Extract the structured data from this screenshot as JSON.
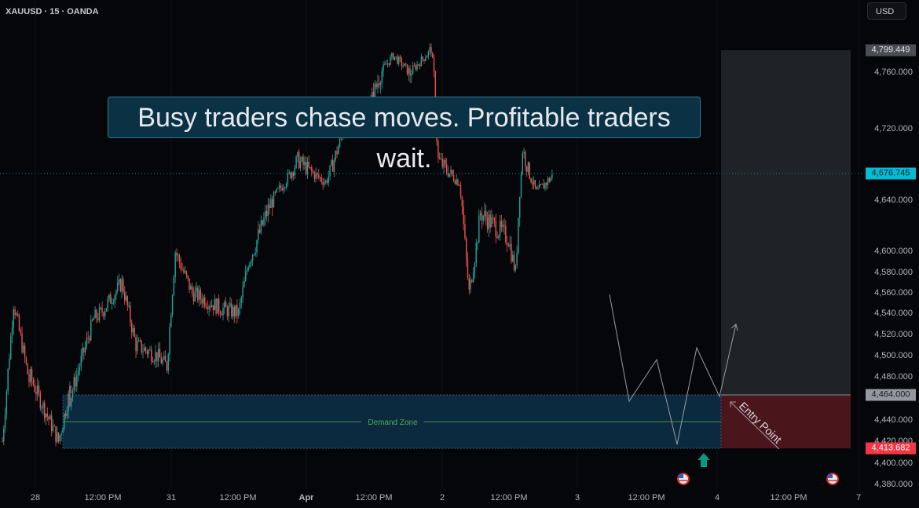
{
  "header": {
    "symbol": "XAUUSD · 15 · OANDA",
    "currency_button": "USD"
  },
  "banner": {
    "text": "Busy traders chase moves. Profitable traders wait."
  },
  "annotations": {
    "demand_zone": "Demand Zone",
    "entry_point": "Entry Point"
  },
  "colors": {
    "up": "#26a69a",
    "down": "#ef5350",
    "last_price": "#00bcd4",
    "zone": "#0b2a40",
    "stop": "#4a161b",
    "target": "#1f2226"
  },
  "price_axis": {
    "ticks": [
      "4,760.000",
      "4,720.000",
      "4,640.000",
      "4,600.000",
      "4,580.000",
      "4,560.000",
      "4,540.000",
      "4,520.000",
      "4,500.000",
      "4,480.000",
      "4,440.000",
      "4,420.000",
      "4,400.000",
      "4,380.000"
    ],
    "target_label": "4,799.449",
    "last_price_label": "4,676.745",
    "entry_label": "4,464.000",
    "stop_label": "4,413.682"
  },
  "time_axis": {
    "ticks": [
      "28",
      "12:00 PM",
      "31",
      "12:00 PM",
      "Apr",
      "12:00 PM",
      "2",
      "12:00 PM",
      "3",
      "12:00 PM",
      "4",
      "12:00 PM",
      "7"
    ]
  },
  "chart_data": {
    "type": "candlestick",
    "price_waypoints": [
      [
        0,
        4420
      ],
      [
        8,
        4550
      ],
      [
        20,
        4470
      ],
      [
        20,
        4480
      ],
      [
        40,
        4420
      ],
      [
        50,
        4480
      ],
      [
        48,
        4460
      ],
      [
        65,
        4535
      ],
      [
        70,
        4540
      ],
      [
        85,
        4570
      ],
      [
        95,
        4510
      ],
      [
        110,
        4500
      ],
      [
        117,
        4490
      ],
      [
        123,
        4600
      ],
      [
        135,
        4560
      ],
      [
        155,
        4545
      ],
      [
        168,
        4540
      ],
      [
        175,
        4590
      ],
      [
        188,
        4630
      ],
      [
        210,
        4690
      ],
      [
        230,
        4665
      ],
      [
        243,
        4720
      ],
      [
        260,
        4730
      ],
      [
        278,
        4790
      ],
      [
        290,
        4760
      ],
      [
        305,
        4800
      ],
      [
        310,
        4690
      ],
      [
        325,
        4665
      ],
      [
        332,
        4560
      ],
      [
        340,
        4630
      ],
      [
        360,
        4610
      ],
      [
        365,
        4580
      ],
      [
        370,
        4700
      ],
      [
        380,
        4650
      ],
      [
        392,
        4675
      ]
    ],
    "demand_zone": [
      4413.682,
      4464.0
    ],
    "target": 4799.449,
    "entry": 4464.0,
    "stop": 4413.682,
    "last_price": 4676.745
  },
  "icons": [
    "us-flag-event-icon",
    "us-flag-event-icon",
    "up-arrow-icon"
  ]
}
